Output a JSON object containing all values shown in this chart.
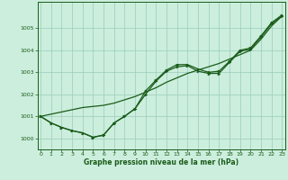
{
  "xlabel": "Graphe pression niveau de la mer (hPa)",
  "background_color": "#cceedd",
  "grid_color": "#99ccbb",
  "line_color": "#1a5c1a",
  "x": [
    0,
    1,
    2,
    3,
    4,
    5,
    6,
    7,
    8,
    9,
    10,
    11,
    12,
    13,
    14,
    15,
    16,
    17,
    18,
    19,
    20,
    21,
    22,
    23
  ],
  "series1": [
    1001.0,
    1000.7,
    1000.5,
    1000.35,
    1000.25,
    1000.05,
    1000.15,
    1000.7,
    1001.0,
    1001.35,
    1002.15,
    1002.65,
    1003.1,
    1003.35,
    1003.35,
    1003.15,
    1003.0,
    1003.05,
    1003.5,
    1004.0,
    1004.1,
    1004.65,
    1005.25,
    1005.6
  ],
  "series2": [
    1001.0,
    1000.7,
    1000.5,
    1000.35,
    1000.25,
    1000.05,
    1000.15,
    1000.7,
    1001.0,
    1001.35,
    1002.0,
    1002.6,
    1003.05,
    1003.25,
    1003.3,
    1003.05,
    1002.95,
    1002.95,
    1003.45,
    1003.95,
    1004.05,
    1004.6,
    1005.2,
    1005.55
  ],
  "series3_smooth": [
    1001.0,
    1001.1,
    1001.2,
    1001.3,
    1001.4,
    1001.45,
    1001.5,
    1001.6,
    1001.75,
    1001.9,
    1002.1,
    1002.3,
    1002.55,
    1002.75,
    1002.95,
    1003.1,
    1003.25,
    1003.4,
    1003.6,
    1003.8,
    1004.0,
    1004.5,
    1005.1,
    1005.55
  ],
  "ylim": [
    999.5,
    1006.2
  ],
  "yticks": [
    1000,
    1001,
    1002,
    1003,
    1004,
    1005
  ],
  "xlim": [
    -0.3,
    23.3
  ]
}
